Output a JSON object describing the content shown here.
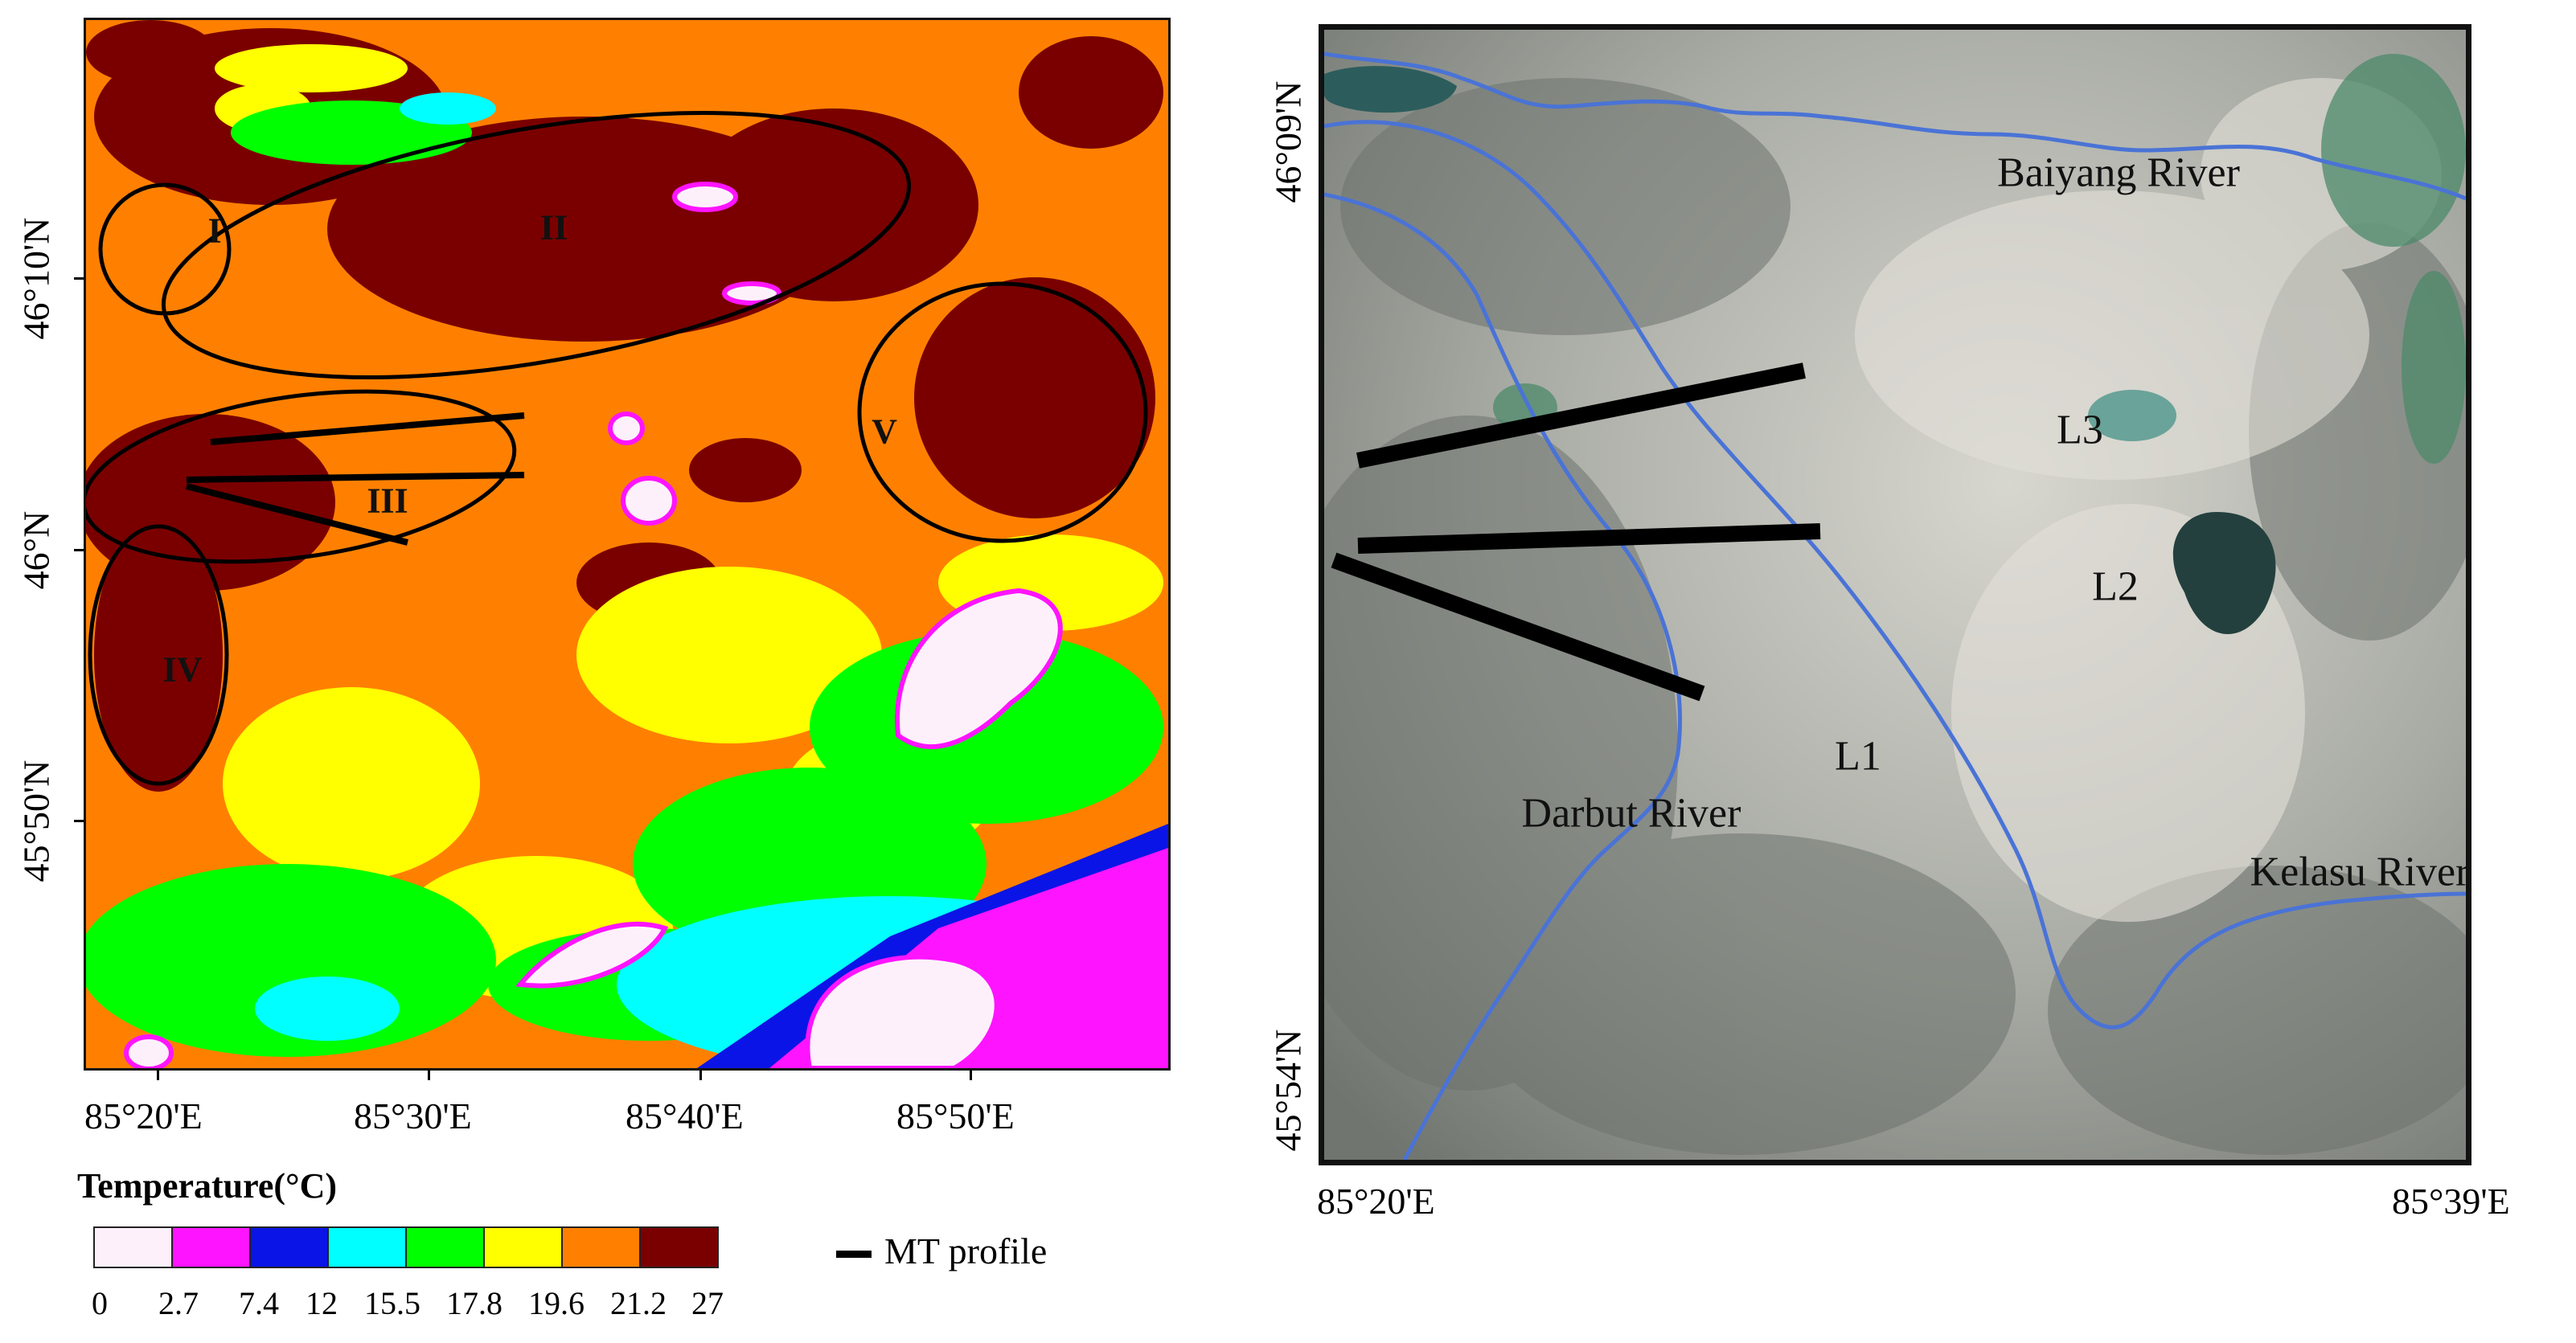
{
  "left_map": {
    "regions": [
      {
        "id": "I",
        "label": "I"
      },
      {
        "id": "II",
        "label": "II"
      },
      {
        "id": "III",
        "label": "III"
      },
      {
        "id": "IV",
        "label": "IV"
      },
      {
        "id": "V",
        "label": "V"
      }
    ],
    "x_ticks": [
      "85°20'E",
      "85°30'E",
      "85°40'E",
      "85°50'E"
    ],
    "y_ticks": [
      "46°10'N",
      "46°N",
      "45°50'N"
    ],
    "legend": {
      "title": "Temperature(°C)",
      "values": [
        "0",
        "2.7",
        "7.4",
        "12",
        "15.5",
        "17.8",
        "19.6",
        "21.2",
        "27"
      ],
      "colors": [
        "#fdf0fb",
        "#ff14ff",
        "#0a14e6",
        "#00ffff",
        "#00ff00",
        "#ffff00",
        "#ff8000",
        "#7a0000"
      ]
    }
  },
  "mt_key": {
    "label": "MT profile"
  },
  "right_map": {
    "x_ticks": [
      "85°20'E",
      "85°39'E"
    ],
    "y_ticks": [
      "46°09'N",
      "45°54'N"
    ],
    "rivers": [
      {
        "id": "baiyang",
        "label": "Baiyang River"
      },
      {
        "id": "darbut",
        "label": "Darbut River"
      },
      {
        "id": "kelasu",
        "label": "Kelasu River"
      }
    ],
    "profiles": [
      {
        "id": "L1",
        "label": "L1"
      },
      {
        "id": "L2",
        "label": "L2"
      },
      {
        "id": "L3",
        "label": "L3"
      }
    ],
    "river_color": "#4a73d6"
  }
}
